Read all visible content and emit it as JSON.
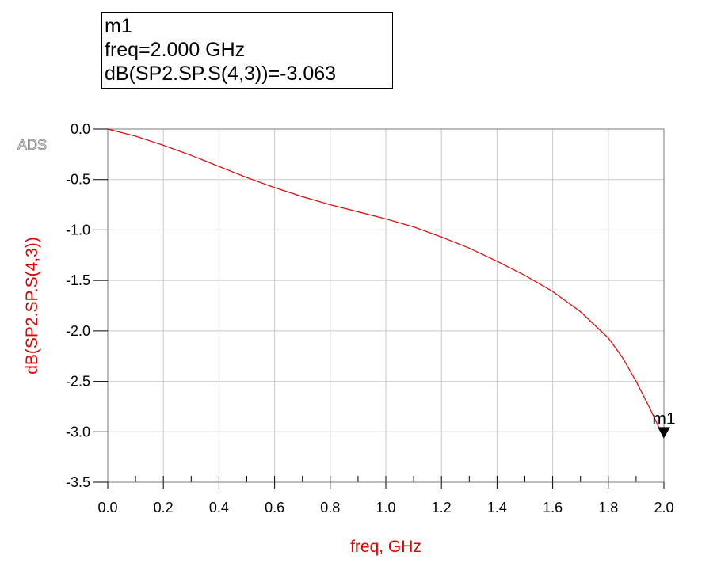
{
  "marker_box": {
    "name": "m1",
    "freq_line": "freq=2.000 GHz",
    "value_line": "dB(SP2.SP.S(4,3))=-3.063"
  },
  "logo_text": "ADS",
  "chart_data": {
    "type": "line",
    "xlabel": "freq, GHz",
    "ylabel": "dB(SP2.SP.S(4,3))",
    "xlim": [
      0.0,
      2.0
    ],
    "ylim": [
      -3.5,
      0.0
    ],
    "x_ticks": [
      "0.0",
      "0.2",
      "0.4",
      "0.6",
      "0.8",
      "1.0",
      "1.2",
      "1.4",
      "1.6",
      "1.8",
      "2.0"
    ],
    "y_ticks": [
      "0.0",
      "-0.5",
      "-1.0",
      "-1.5",
      "-2.0",
      "-2.5",
      "-3.0",
      "-3.5"
    ],
    "grid": true,
    "colors": {
      "series": "#e00000",
      "axis_labels": "#e00000",
      "grid": "#c8c8c8",
      "marker": "#000000"
    },
    "series": [
      {
        "x": [
          0.0,
          0.1,
          0.2,
          0.3,
          0.4,
          0.5,
          0.6,
          0.7,
          0.8,
          0.9,
          1.0,
          1.1,
          1.2,
          1.3,
          1.4,
          1.5,
          1.6,
          1.7,
          1.8,
          1.85,
          1.9,
          1.95,
          2.0
        ],
        "values": [
          0.0,
          -0.07,
          -0.16,
          -0.26,
          -0.37,
          -0.48,
          -0.58,
          -0.67,
          -0.75,
          -0.82,
          -0.89,
          -0.97,
          -1.07,
          -1.18,
          -1.31,
          -1.45,
          -1.61,
          -1.81,
          -2.07,
          -2.26,
          -2.5,
          -2.77,
          -3.063
        ]
      }
    ],
    "marker": {
      "label": "m1",
      "x": 2.0,
      "y": -3.063
    }
  }
}
